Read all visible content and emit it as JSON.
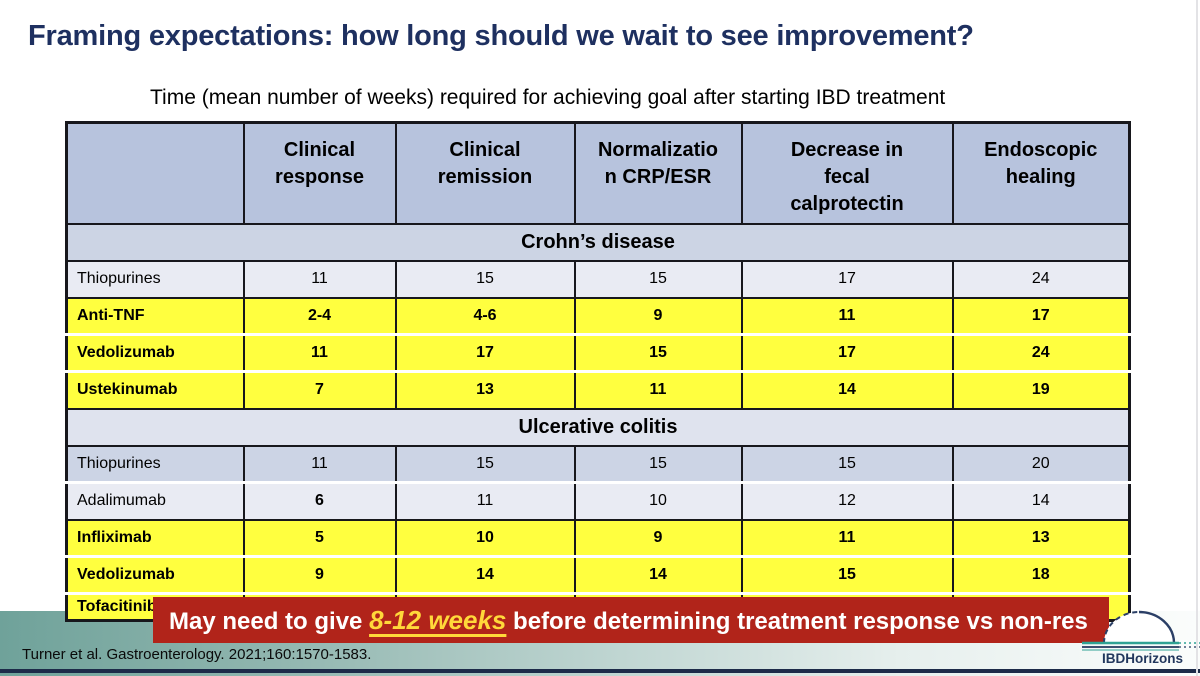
{
  "slide": {
    "title": "Framing expectations: how long should we wait to see improvement?",
    "subtitle": "Time (mean number of weeks) required for achieving goal after starting IBD treatment"
  },
  "table": {
    "columns": [
      "",
      "Clinical\nresponse",
      "Clinical\nremission",
      "Normalizatio\nn CRP/ESR",
      "Decrease in\nfecal\ncalprotectin",
      "Endoscopic\nhealing"
    ],
    "sections": [
      {
        "name": "Crohn’s disease",
        "band_style": "cd",
        "rows": [
          {
            "label": "Thiopurines",
            "style": "light",
            "sep": "dark",
            "values": [
              "11",
              "15",
              "15",
              "17",
              "24"
            ]
          },
          {
            "label": "Anti-TNF",
            "style": "yellow",
            "sep": "dark",
            "values": [
              "2-4",
              "4-6",
              "9",
              "11",
              "17"
            ]
          },
          {
            "label": "Vedolizumab",
            "style": "yellow",
            "sep": "white",
            "values": [
              "11",
              "17",
              "15",
              "17",
              "24"
            ]
          },
          {
            "label": "Ustekinumab",
            "style": "yellow",
            "sep": "white",
            "values": [
              "7",
              "13",
              "11",
              "14",
              "19"
            ]
          }
        ]
      },
      {
        "name": "Ulcerative colitis",
        "band_style": "uc",
        "rows": [
          {
            "label": "Thiopurines",
            "style": "mid",
            "sep": "dark",
            "values": [
              "11",
              "15",
              "15",
              "15",
              "20"
            ]
          },
          {
            "label": "Adalimumab",
            "style": "light",
            "sep": "white",
            "values": [
              "6",
              "11",
              "10",
              "12",
              "14"
            ],
            "bold_cells": [
              true,
              false,
              false,
              false,
              false
            ]
          },
          {
            "label": "Infliximab",
            "style": "yellow",
            "sep": "dark",
            "values": [
              "5",
              "10",
              "9",
              "11",
              "13"
            ]
          },
          {
            "label": "Vedolizumab",
            "style": "yellow",
            "sep": "white",
            "values": [
              "9",
              "14",
              "14",
              "15",
              "18"
            ]
          },
          {
            "label": "Tofacitinib",
            "style": "yellow",
            "sep": "white",
            "clipped": true,
            "values": [
              "",
              "",
              "",
              "",
              ""
            ]
          }
        ]
      }
    ]
  },
  "banner": {
    "prefix": "May need to give ",
    "highlight": "8-12 weeks",
    "suffix": " before determining treatment response vs non-res"
  },
  "footer": {
    "citation": "Turner et al. Gastroenterology. 2021;160:1570-1583.",
    "logo_text": "IBDHorizons"
  },
  "colors": {
    "title_navy": "#1e3060",
    "header_blue": "#b7c3dd",
    "section_band_cd": "#ccd4e4",
    "section_band_uc": "#dfe3ee",
    "row_light": "#e9ebf3",
    "row_mid": "#ccd4e5",
    "highlight_yellow": "#ffff3f",
    "banner_red": "#b1241a",
    "banner_highlight_text": "#ffd83a",
    "footer_teal": "#6fa29a",
    "bottom_line_navy": "#1d2b49",
    "logo_teal": "#2fa294",
    "logo_navy": "#22375d"
  }
}
